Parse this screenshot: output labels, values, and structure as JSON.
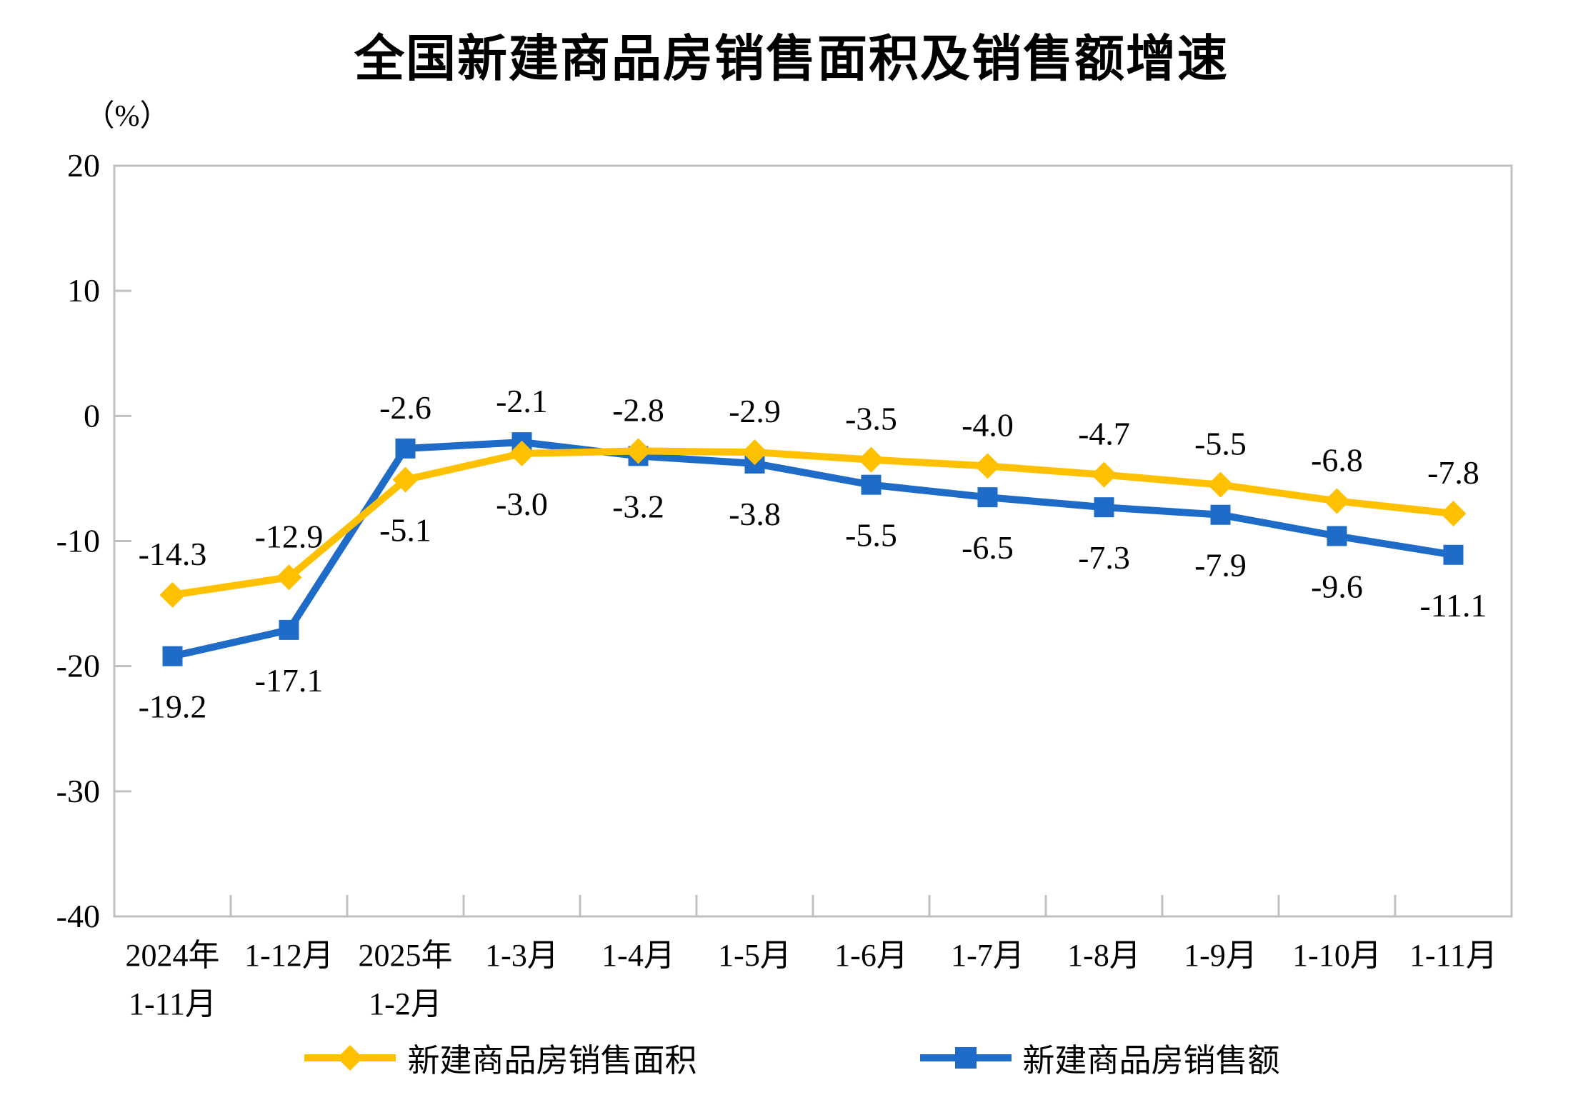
{
  "title": "全国新建商品房销售面积及销售额增速",
  "unit_label": "（%）",
  "chart_data": {
    "type": "line",
    "title": "全国新建商品房销售面积及销售额增速",
    "ylabel": "（%）",
    "xlabel": "",
    "ylim": [
      -40,
      20
    ],
    "yticks": [
      20,
      10,
      0,
      -10,
      -20,
      -30,
      -40
    ],
    "grid": false,
    "legend_position": "bottom",
    "axis_color": "#BFBFBF",
    "label_color": "#000000",
    "categories": [
      "2024年\n1-11月",
      "1-12月",
      "2025年\n1-2月",
      "1-3月",
      "1-4月",
      "1-5月",
      "1-6月",
      "1-7月",
      "1-8月",
      "1-9月",
      "1-10月",
      "1-11月"
    ],
    "series": [
      {
        "name": "新建商品房销售面积",
        "color": "#FFC000",
        "marker": "diamond",
        "values": [
          -14.3,
          -12.9,
          -5.1,
          -3.0,
          -2.8,
          -2.9,
          -3.5,
          -4.0,
          -4.7,
          -5.5,
          -6.8,
          -7.8
        ],
        "label_positions": [
          "above",
          "above",
          "below",
          "below",
          "above",
          "above",
          "above",
          "above",
          "above",
          "above",
          "above",
          "above"
        ]
      },
      {
        "name": "新建商品房销售额",
        "color": "#1F6BC8",
        "marker": "square",
        "values": [
          -19.2,
          -17.1,
          -2.6,
          -2.1,
          -3.2,
          -3.8,
          -5.5,
          -6.5,
          -7.3,
          -7.9,
          -9.6,
          -11.1
        ],
        "label_positions": [
          "below",
          "below",
          "above",
          "above",
          "below",
          "below",
          "below",
          "below",
          "below",
          "below",
          "below",
          "below"
        ]
      }
    ]
  }
}
